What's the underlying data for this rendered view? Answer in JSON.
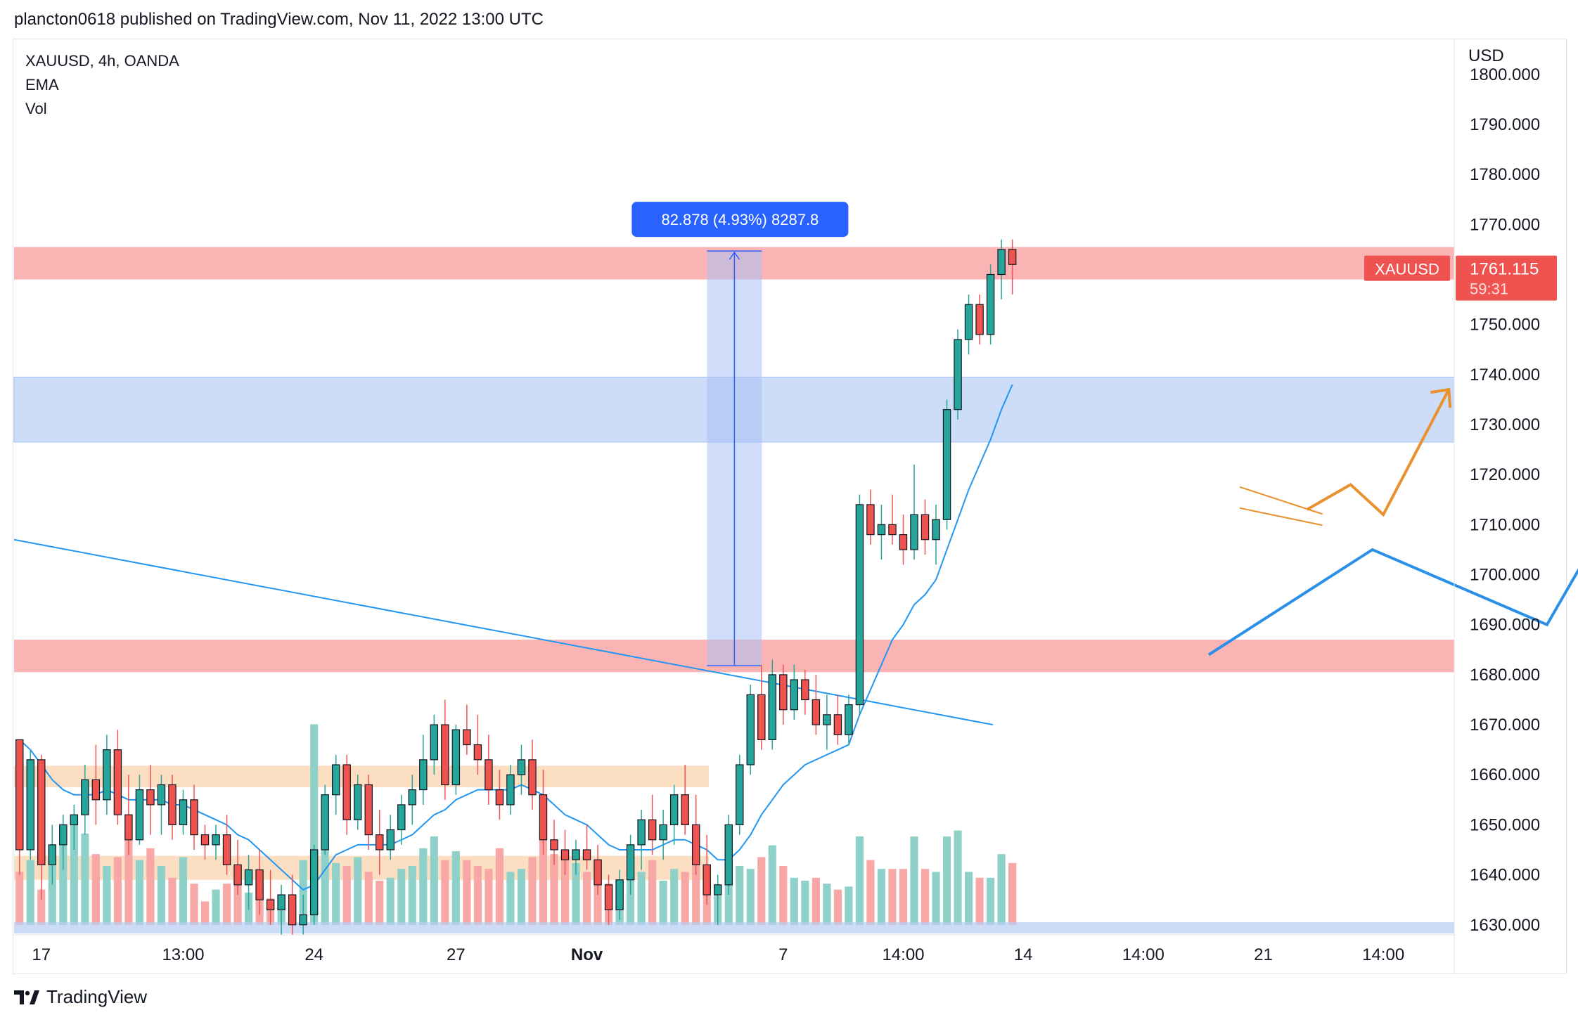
{
  "header": {
    "published": "plancton0618 published on TradingView.com, Nov 11, 2022 13:00 UTC"
  },
  "legend": {
    "symbol": "XAUUSD, 4h, OANDA",
    "ema": "EMA",
    "vol": "Vol"
  },
  "footer": {
    "brand": "TradingView"
  },
  "colors": {
    "up": "#26a69a",
    "down": "#ef5350",
    "ema": "#2196f3",
    "support_zone": "#fbb4b4",
    "blue_zone": "#cddcf7",
    "orange_zone": "#fbd9b8",
    "projection_blue": "#2a8fe8",
    "projection_orange": "#e8912e"
  },
  "chart_data": {
    "type": "candlestick",
    "symbol": "XAUUSD",
    "timeframe": "4h",
    "exchange": "OANDA",
    "currency": "USD",
    "y_axis_ticks": [
      "1800.000",
      "1790.000",
      "1780.000",
      "1770.000",
      "1760.000",
      "1750.000",
      "1740.000",
      "1730.000",
      "1720.000",
      "1710.000",
      "1700.000",
      "1690.000",
      "1680.000",
      "1670.000",
      "1660.000",
      "1650.000",
      "1640.000",
      "1630.000"
    ],
    "y_axis_values": [
      1800,
      1790,
      1780,
      1770,
      1760,
      1750,
      1740,
      1730,
      1720,
      1710,
      1700,
      1690,
      1680,
      1670,
      1660,
      1650,
      1640,
      1630
    ],
    "ylim": [
      1628,
      1807
    ],
    "x_axis_ticks": [
      "17",
      "13:00",
      "24",
      "27",
      "Nov",
      "7",
      "14:00",
      "14",
      "14:00",
      "21",
      "14:00"
    ],
    "x_tick_index": [
      2,
      15,
      27,
      40,
      52,
      70,
      81,
      92,
      103,
      114,
      125
    ],
    "n_slots": 132,
    "last_price": {
      "label": "XAUUSD",
      "price": "1761.115",
      "countdown": "59:31"
    },
    "measure": {
      "label": "82.878 (4.93%) 8287.8",
      "from": 1681.8,
      "to": 1764.7
    },
    "zones": [
      {
        "kind": "resistance",
        "from": 1759,
        "to": 1765.5
      },
      {
        "kind": "blue",
        "from": 1726.5,
        "to": 1739.5
      },
      {
        "kind": "resistance",
        "from": 1680.5,
        "to": 1687
      },
      {
        "kind": "orange",
        "from": 1657.5,
        "to": 1661.8
      },
      {
        "kind": "orange",
        "from": 1639,
        "to": 1643.8
      }
    ],
    "candles": [
      [
        1667,
        1667,
        1640,
        1645
      ],
      [
        1645,
        1665,
        1643,
        1663
      ],
      [
        1663,
        1664,
        1635,
        1642
      ],
      [
        1642,
        1650,
        1638,
        1646
      ],
      [
        1646,
        1652,
        1641,
        1650
      ],
      [
        1650,
        1654,
        1645,
        1652
      ],
      [
        1652,
        1662,
        1648,
        1659
      ],
      [
        1659,
        1666,
        1650,
        1655
      ],
      [
        1655,
        1668,
        1652,
        1665
      ],
      [
        1665,
        1669,
        1650,
        1652
      ],
      [
        1652,
        1660,
        1644,
        1647
      ],
      [
        1647,
        1660,
        1646,
        1657
      ],
      [
        1657,
        1662,
        1648,
        1654
      ],
      [
        1654,
        1660,
        1648,
        1658
      ],
      [
        1658,
        1660,
        1647,
        1650
      ],
      [
        1650,
        1657,
        1648,
        1655
      ],
      [
        1655,
        1658,
        1645,
        1648
      ],
      [
        1648,
        1650,
        1643,
        1646
      ],
      [
        1646,
        1650,
        1643,
        1648
      ],
      [
        1648,
        1652,
        1640,
        1642
      ],
      [
        1642,
        1647,
        1636,
        1638
      ],
      [
        1638,
        1644,
        1633,
        1641
      ],
      [
        1641,
        1645,
        1632,
        1635
      ],
      [
        1635,
        1641,
        1630,
        1633
      ],
      [
        1633,
        1638,
        1628,
        1636
      ],
      [
        1636,
        1640,
        1628,
        1630
      ],
      [
        1630,
        1636,
        1628,
        1632
      ],
      [
        1632,
        1646,
        1630,
        1645
      ],
      [
        1645,
        1658,
        1644,
        1656
      ],
      [
        1656,
        1664,
        1652,
        1662
      ],
      [
        1662,
        1664,
        1648,
        1651
      ],
      [
        1651,
        1660,
        1649,
        1658
      ],
      [
        1658,
        1660,
        1645,
        1648
      ],
      [
        1648,
        1653,
        1640,
        1645
      ],
      [
        1645,
        1652,
        1643,
        1649
      ],
      [
        1649,
        1656,
        1646,
        1654
      ],
      [
        1654,
        1660,
        1650,
        1657
      ],
      [
        1657,
        1668,
        1654,
        1663
      ],
      [
        1663,
        1672,
        1660,
        1670
      ],
      [
        1670,
        1675,
        1655,
        1658
      ],
      [
        1658,
        1670,
        1656,
        1669
      ],
      [
        1669,
        1674,
        1664,
        1666
      ],
      [
        1666,
        1672,
        1660,
        1663
      ],
      [
        1663,
        1668,
        1654,
        1657
      ],
      [
        1657,
        1661,
        1651,
        1654
      ],
      [
        1654,
        1662,
        1652,
        1660
      ],
      [
        1660,
        1666,
        1656,
        1663
      ],
      [
        1663,
        1667,
        1653,
        1656
      ],
      [
        1656,
        1661,
        1644,
        1647
      ],
      [
        1647,
        1651,
        1642,
        1645
      ],
      [
        1645,
        1649,
        1640,
        1643
      ],
      [
        1643,
        1647,
        1640,
        1645
      ],
      [
        1645,
        1650,
        1641,
        1643
      ],
      [
        1643,
        1646,
        1636,
        1638
      ],
      [
        1638,
        1640,
        1630,
        1633
      ],
      [
        1633,
        1641,
        1631,
        1639
      ],
      [
        1639,
        1648,
        1636,
        1646
      ],
      [
        1646,
        1653,
        1641,
        1651
      ],
      [
        1651,
        1656,
        1644,
        1647
      ],
      [
        1647,
        1653,
        1643,
        1650
      ],
      [
        1650,
        1658,
        1646,
        1656
      ],
      [
        1656,
        1662,
        1648,
        1650
      ],
      [
        1650,
        1656,
        1640,
        1642
      ],
      [
        1642,
        1648,
        1634,
        1636
      ],
      [
        1636,
        1640,
        1630,
        1638
      ],
      [
        1638,
        1652,
        1636,
        1650
      ],
      [
        1650,
        1664,
        1648,
        1662
      ],
      [
        1662,
        1678,
        1660,
        1676
      ],
      [
        1676,
        1682,
        1665,
        1667
      ],
      [
        1667,
        1683,
        1665,
        1680
      ],
      [
        1680,
        1682,
        1670,
        1673
      ],
      [
        1673,
        1682,
        1671,
        1679
      ],
      [
        1679,
        1681,
        1672,
        1675
      ],
      [
        1675,
        1680,
        1668,
        1670
      ],
      [
        1670,
        1676,
        1665,
        1672
      ],
      [
        1672,
        1676,
        1666,
        1668
      ],
      [
        1668,
        1676,
        1666,
        1674
      ],
      [
        1674,
        1716,
        1672,
        1714
      ],
      [
        1714,
        1717,
        1706,
        1708
      ],
      [
        1708,
        1714,
        1703,
        1710
      ],
      [
        1710,
        1716,
        1706,
        1708
      ],
      [
        1708,
        1712,
        1702,
        1705
      ],
      [
        1705,
        1722,
        1703,
        1712
      ],
      [
        1712,
        1715,
        1704,
        1707
      ],
      [
        1707,
        1714,
        1702,
        1711
      ],
      [
        1711,
        1735,
        1709,
        1733
      ],
      [
        1733,
        1749,
        1731,
        1747
      ],
      [
        1747,
        1756,
        1744,
        1754
      ],
      [
        1754,
        1756,
        1746,
        1748
      ],
      [
        1748,
        1762,
        1746,
        1760
      ],
      [
        1760,
        1767,
        1755,
        1765
      ],
      [
        1765,
        1767,
        1756,
        1762
      ]
    ],
    "volume": [
      [
        18,
        "d"
      ],
      [
        22,
        "u"
      ],
      [
        12,
        "d"
      ],
      [
        26,
        "u"
      ],
      [
        33,
        "u"
      ],
      [
        35,
        "u"
      ],
      [
        31,
        "u"
      ],
      [
        24,
        "d"
      ],
      [
        20,
        "u"
      ],
      [
        23,
        "d"
      ],
      [
        30,
        "d"
      ],
      [
        22,
        "u"
      ],
      [
        26,
        "d"
      ],
      [
        20,
        "u"
      ],
      [
        16,
        "d"
      ],
      [
        23,
        "u"
      ],
      [
        14,
        "d"
      ],
      [
        8,
        "d"
      ],
      [
        12,
        "u"
      ],
      [
        14,
        "d"
      ],
      [
        15,
        "d"
      ],
      [
        11,
        "u"
      ],
      [
        12,
        "d"
      ],
      [
        9,
        "d"
      ],
      [
        10,
        "u"
      ],
      [
        6,
        "d"
      ],
      [
        22,
        "u"
      ],
      [
        68,
        "u"
      ],
      [
        28,
        "u"
      ],
      [
        21,
        "u"
      ],
      [
        20,
        "d"
      ],
      [
        23,
        "u"
      ],
      [
        18,
        "d"
      ],
      [
        15,
        "d"
      ],
      [
        16,
        "u"
      ],
      [
        19,
        "u"
      ],
      [
        20,
        "u"
      ],
      [
        26,
        "u"
      ],
      [
        30,
        "u"
      ],
      [
        22,
        "d"
      ],
      [
        25,
        "u"
      ],
      [
        22,
        "d"
      ],
      [
        20,
        "d"
      ],
      [
        19,
        "d"
      ],
      [
        26,
        "d"
      ],
      [
        18,
        "u"
      ],
      [
        19,
        "u"
      ],
      [
        23,
        "d"
      ],
      [
        32,
        "d"
      ],
      [
        24,
        "d"
      ],
      [
        22,
        "d"
      ],
      [
        21,
        "u"
      ],
      [
        18,
        "d"
      ],
      [
        16,
        "d"
      ],
      [
        14,
        "d"
      ],
      [
        15,
        "u"
      ],
      [
        19,
        "u"
      ],
      [
        18,
        "u"
      ],
      [
        22,
        "d"
      ],
      [
        15,
        "u"
      ],
      [
        19,
        "u"
      ],
      [
        18,
        "d"
      ],
      [
        22,
        "d"
      ],
      [
        16,
        "d"
      ],
      [
        10,
        "u"
      ],
      [
        27,
        "u"
      ],
      [
        20,
        "u"
      ],
      [
        19,
        "u"
      ],
      [
        23,
        "d"
      ],
      [
        27,
        "u"
      ],
      [
        20,
        "d"
      ],
      [
        16,
        "u"
      ],
      [
        15,
        "u"
      ],
      [
        16,
        "d"
      ],
      [
        14,
        "u"
      ],
      [
        12,
        "d"
      ],
      [
        13,
        "u"
      ],
      [
        30,
        "u"
      ],
      [
        22,
        "d"
      ],
      [
        19,
        "u"
      ],
      [
        19,
        "d"
      ],
      [
        19,
        "d"
      ],
      [
        30,
        "u"
      ],
      [
        19,
        "d"
      ],
      [
        18,
        "u"
      ],
      [
        30,
        "u"
      ],
      [
        32,
        "u"
      ],
      [
        18,
        "u"
      ],
      [
        16,
        "d"
      ],
      [
        16,
        "u"
      ],
      [
        24,
        "u"
      ],
      [
        21,
        "d"
      ]
    ],
    "ema": [
      1667,
      1665,
      1662,
      1659,
      1657,
      1656,
      1656,
      1656,
      1657,
      1656,
      1655,
      1655,
      1655,
      1655,
      1654,
      1654,
      1653,
      1652,
      1651,
      1650,
      1648,
      1647,
      1645,
      1643,
      1641,
      1639,
      1637,
      1638,
      1641,
      1644,
      1645,
      1646,
      1646,
      1646,
      1646,
      1647,
      1648,
      1650,
      1652,
      1653,
      1655,
      1656,
      1657,
      1657,
      1657,
      1657,
      1658,
      1657,
      1656,
      1654,
      1652,
      1651,
      1650,
      1648,
      1646,
      1645,
      1645,
      1645,
      1645,
      1646,
      1647,
      1647,
      1646,
      1645,
      1643,
      1643,
      1645,
      1648,
      1652,
      1655,
      1658,
      1660,
      1662,
      1663,
      1664,
      1665,
      1666,
      1672,
      1677,
      1682,
      1687,
      1690,
      1694,
      1696,
      1699,
      1705,
      1711,
      1717,
      1722,
      1727,
      1733,
      1738
    ],
    "trendline": [
      [
        0,
        1707
      ],
      [
        118,
        1670
      ]
    ],
    "projection_blue": [
      [
        109,
        1684
      ],
      [
        124,
        1705
      ],
      [
        140,
        1690
      ],
      [
        154,
        1743
      ]
    ],
    "projection_orange": [
      [
        118,
        1713
      ],
      [
        122,
        1718
      ],
      [
        125,
        1712
      ],
      [
        131,
        1737
      ]
    ],
    "orange_flag": [
      [
        113,
        1715
      ],
      [
        118,
        1711
      ]
    ]
  }
}
